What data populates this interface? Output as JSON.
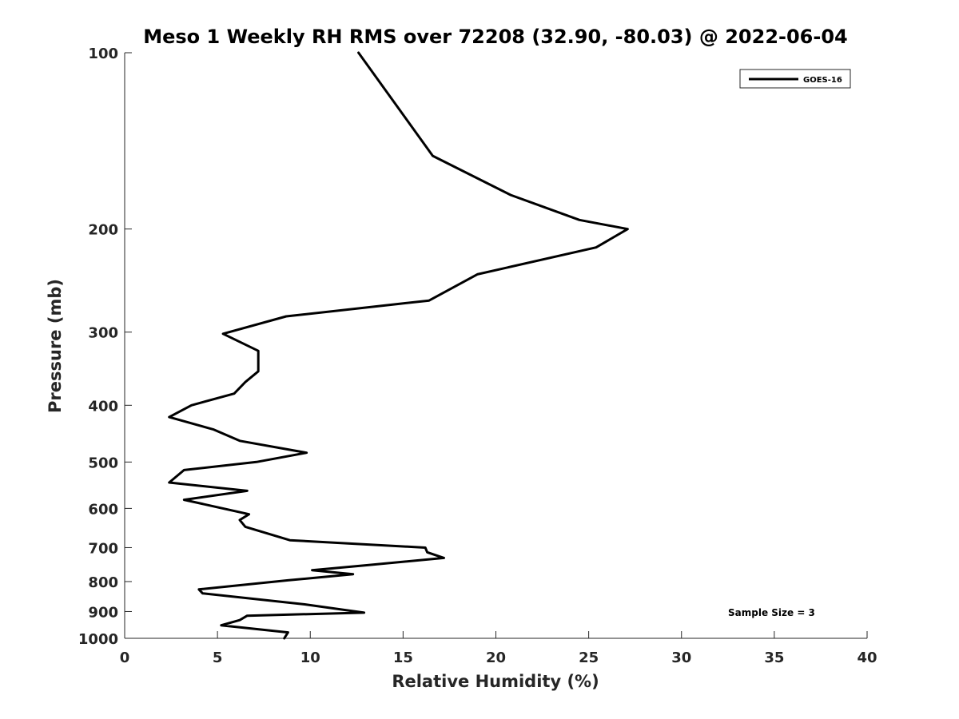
{
  "chart_data": {
    "type": "line",
    "title": "Meso 1 Weekly RH RMS over 72208 (32.90, -80.03) @ 2022-06-04",
    "xlabel": "Relative Humidity (%)",
    "ylabel": "Pressure (mb)",
    "xlim": [
      0,
      40
    ],
    "ylim": [
      100,
      1000
    ],
    "y_scale": "log",
    "y_reversed": true,
    "x_ticks": [
      "0",
      "5",
      "10",
      "15",
      "20",
      "25",
      "30",
      "35",
      "40"
    ],
    "y_ticks": [
      "100",
      "200",
      "300",
      "400",
      "500",
      "600",
      "700",
      "800",
      "900",
      "1000"
    ],
    "grid": false,
    "legend_position": "top-right",
    "series": [
      {
        "name": "GOES-16",
        "color": "#000000",
        "x": [
          12.6,
          14.8,
          16.6,
          20.8,
          24.5,
          27.1,
          25.4,
          19.0,
          16.4,
          8.7,
          5.3,
          7.2,
          7.2,
          6.5,
          5.9,
          3.6,
          2.4,
          4.8,
          6.2,
          9.8,
          7.1,
          3.2,
          2.4,
          6.6,
          3.2,
          6.7,
          6.2,
          6.5,
          8.9,
          16.2,
          16.3,
          17.2,
          13.1,
          10.1,
          12.3,
          8.8,
          4.0,
          4.2,
          9.7,
          12.9,
          6.6,
          6.2,
          5.2,
          8.8,
          8.6
        ],
        "y": [
          100,
          125,
          150,
          175,
          193,
          200,
          215,
          239,
          265,
          282,
          302,
          323,
          350,
          365,
          382,
          400,
          419,
          440,
          460,
          482,
          500,
          516,
          542,
          560,
          580,
          614,
          628,
          645,
          680,
          700,
          713,
          729,
          750,
          765,
          777,
          796,
          825,
          838,
          875,
          904,
          915,
          931,
          950,
          977,
          1000
        ]
      }
    ],
    "annotations": [
      {
        "text": "Sample Size = 3"
      }
    ]
  }
}
